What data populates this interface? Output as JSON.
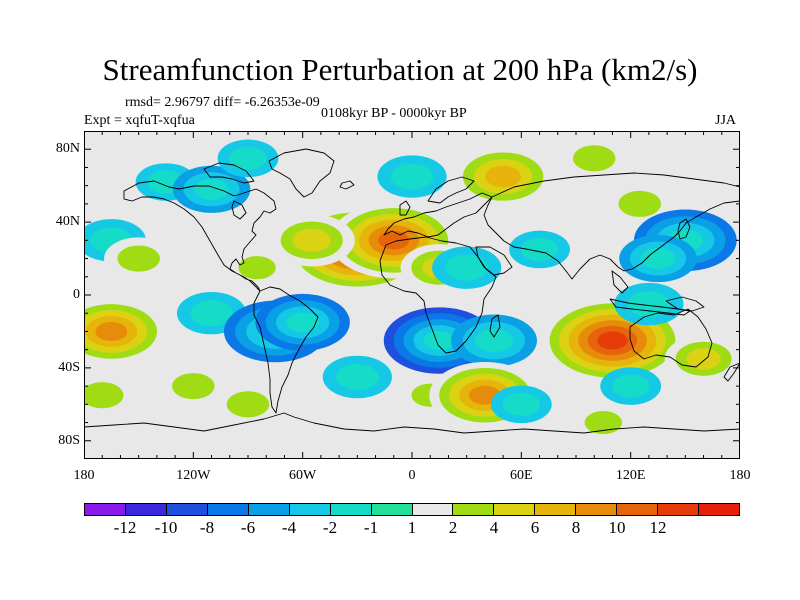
{
  "chart_data": {
    "type": "heatmap",
    "title": "Streamfunction Perturbation at 200 hPa (km2/s)",
    "left_string": "rmsd= 2.96797 diff= -6.26353e-09",
    "experiment": "Expt = xqfuT-xqfua",
    "center_string": "0108kyr BP - 0000kyr BP",
    "season": "JJA",
    "xlim": [
      -180,
      180
    ],
    "ylim": [
      -90,
      90
    ],
    "x_ticks": [
      {
        "value": -180,
        "label": "180"
      },
      {
        "value": -120,
        "label": "120W"
      },
      {
        "value": -60,
        "label": "60W"
      },
      {
        "value": 0,
        "label": "0"
      },
      {
        "value": 60,
        "label": "60E"
      },
      {
        "value": 120,
        "label": "120E"
      },
      {
        "value": 180,
        "label": "180"
      }
    ],
    "y_ticks": [
      {
        "value": 80,
        "label": "80N"
      },
      {
        "value": 40,
        "label": "40N"
      },
      {
        "value": 0,
        "label": "0"
      },
      {
        "value": -40,
        "label": "40S"
      },
      {
        "value": -80,
        "label": "80S"
      }
    ],
    "contour_levels": [
      -12,
      -10,
      -8,
      -6,
      -4,
      -2,
      -1,
      1,
      2,
      4,
      6,
      8,
      10,
      12
    ],
    "colorbar": [
      {
        "color": "#8a1aea",
        "label": ""
      },
      {
        "color": "#3c28dc",
        "label": "-12"
      },
      {
        "color": "#1e50e0",
        "label": "-10"
      },
      {
        "color": "#0a78e6",
        "label": "-8"
      },
      {
        "color": "#0aa0e6",
        "label": "-6"
      },
      {
        "color": "#14c8e6",
        "label": "-4"
      },
      {
        "color": "#14dcc8",
        "label": "-2"
      },
      {
        "color": "#22e09a",
        "label": "-1"
      },
      {
        "color": "#e8e8e8",
        "label": "1"
      },
      {
        "color": "#a0dc14",
        "label": "2"
      },
      {
        "color": "#dcd214",
        "label": "4"
      },
      {
        "color": "#e6b40a",
        "label": "6"
      },
      {
        "color": "#e68c0a",
        "label": "8"
      },
      {
        "color": "#e6640a",
        "label": "10"
      },
      {
        "color": "#e63c0a",
        "label": "12"
      },
      {
        "color": "#e61e0a",
        "label": ""
      }
    ],
    "anomaly_centers": [
      {
        "lon": -165,
        "lat": 30,
        "value": -3
      },
      {
        "lon": -150,
        "lat": 20,
        "value": 3
      },
      {
        "lon": -165,
        "lat": -20,
        "value": 8
      },
      {
        "lon": -170,
        "lat": -55,
        "value": 3
      },
      {
        "lon": -135,
        "lat": 62,
        "value": -2
      },
      {
        "lon": -110,
        "lat": 58,
        "value": -4
      },
      {
        "lon": -90,
        "lat": 75,
        "value": -2
      },
      {
        "lon": -120,
        "lat": -50,
        "value": 3
      },
      {
        "lon": -90,
        "lat": -60,
        "value": 3
      },
      {
        "lon": -85,
        "lat": 15,
        "value": 2
      },
      {
        "lon": -110,
        "lat": -10,
        "value": -3
      },
      {
        "lon": -75,
        "lat": -20,
        "value": -7
      },
      {
        "lon": -60,
        "lat": -15,
        "value": -6
      },
      {
        "lon": -30,
        "lat": 25,
        "value": 12
      },
      {
        "lon": -10,
        "lat": 30,
        "value": 10
      },
      {
        "lon": 15,
        "lat": 15,
        "value": 4
      },
      {
        "lon": -55,
        "lat": 30,
        "value": 5
      },
      {
        "lon": 15,
        "lat": -25,
        "value": -8
      },
      {
        "lon": 45,
        "lat": -25,
        "value": -5
      },
      {
        "lon": -30,
        "lat": -45,
        "value": -3
      },
      {
        "lon": 30,
        "lat": 15,
        "value": -3
      },
      {
        "lon": 70,
        "lat": 25,
        "value": -2
      },
      {
        "lon": 0,
        "lat": 65,
        "value": -3
      },
      {
        "lon": 50,
        "lat": 65,
        "value": 7
      },
      {
        "lon": 100,
        "lat": 75,
        "value": 3
      },
      {
        "lon": 10,
        "lat": -55,
        "value": 2
      },
      {
        "lon": 40,
        "lat": -55,
        "value": 8
      },
      {
        "lon": 125,
        "lat": 50,
        "value": 3
      },
      {
        "lon": 150,
        "lat": 30,
        "value": -7
      },
      {
        "lon": 135,
        "lat": 20,
        "value": -4
      },
      {
        "lon": 110,
        "lat": -25,
        "value": 12
      },
      {
        "lon": 160,
        "lat": -35,
        "value": 4
      },
      {
        "lon": 120,
        "lat": -50,
        "value": -2
      },
      {
        "lon": 130,
        "lat": -5,
        "value": -3
      },
      {
        "lon": 105,
        "lat": -70,
        "value": 2
      },
      {
        "lon": 60,
        "lat": -60,
        "value": -2
      }
    ]
  }
}
